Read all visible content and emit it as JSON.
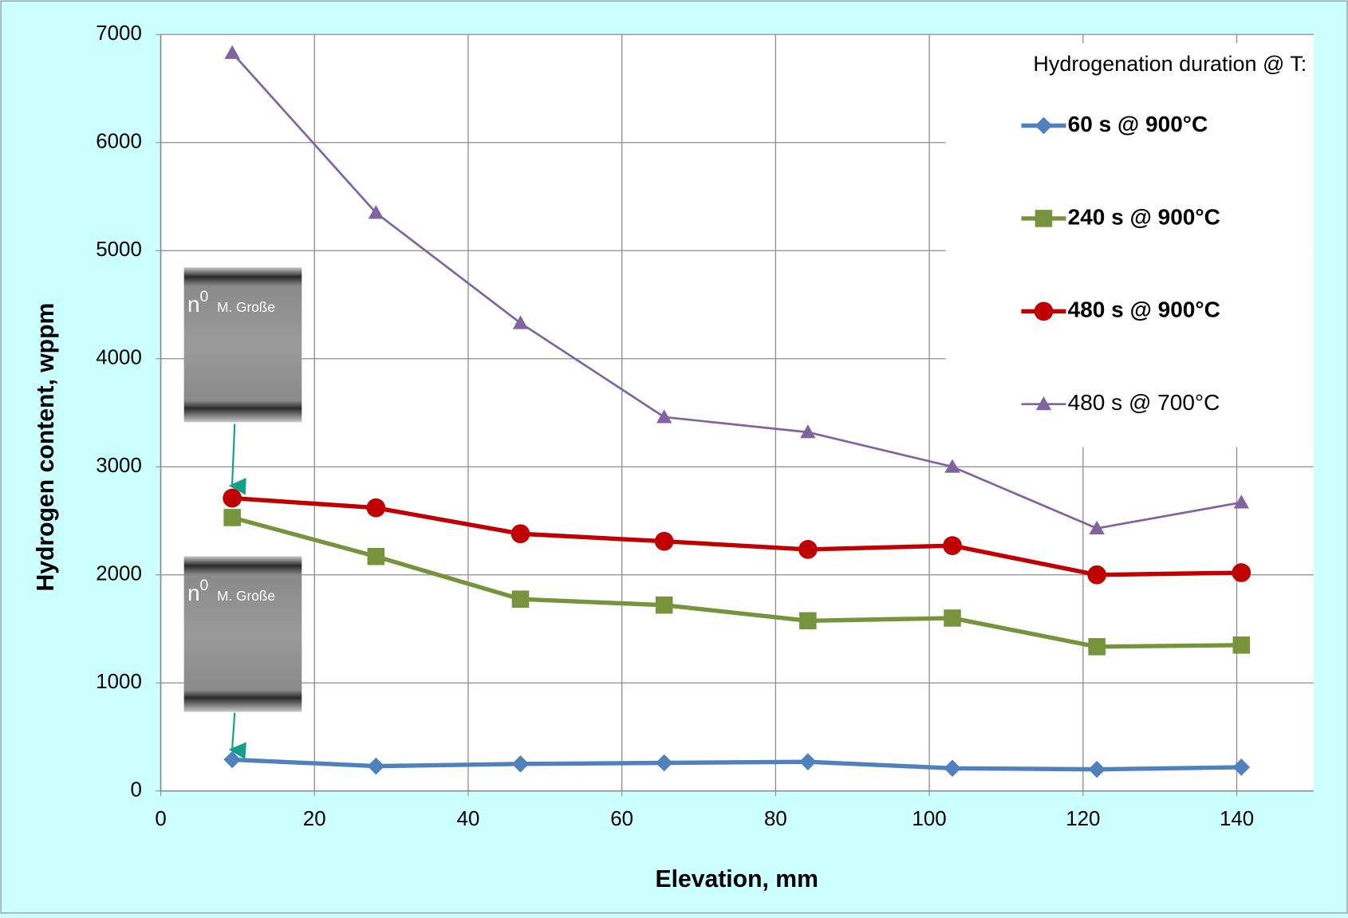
{
  "chart_data": {
    "type": "line",
    "x_label": "Elevation, mm",
    "y_label": "Hydrogen content, wppm",
    "x": [
      9.3,
      28,
      46.8,
      65.5,
      84.2,
      103,
      121.8,
      140.6
    ],
    "series": [
      {
        "name": "60 s @ 900°C",
        "color": "#4f81bd",
        "marker": "diamond",
        "bold": true,
        "values": [
          290,
          230,
          250,
          260,
          270,
          210,
          200,
          220
        ]
      },
      {
        "name": "240 s @ 900°C",
        "color": "#77933c",
        "marker": "square",
        "bold": true,
        "values": [
          2530,
          2170,
          1775,
          1720,
          1575,
          1600,
          1335,
          1350
        ]
      },
      {
        "name": "480 s @ 900°C",
        "color": "#c00000",
        "marker": "circle",
        "bold": true,
        "values": [
          2710,
          2620,
          2380,
          2310,
          2235,
          2270,
          2000,
          2020
        ]
      },
      {
        "name": "480 s @ 700°C",
        "color": "#8064a2",
        "marker": "triangle",
        "bold": false,
        "values": [
          6830,
          5350,
          4330,
          3460,
          3320,
          3000,
          2430,
          2670
        ]
      }
    ],
    "legend_title": "Hydrogenation duration @ T:",
    "legend_position": "upper right",
    "xlim": [
      0,
      150
    ],
    "xticks": [
      0,
      20,
      40,
      60,
      80,
      100,
      120,
      140
    ],
    "ylim": [
      0,
      7000
    ],
    "yticks": [
      0,
      1000,
      2000,
      3000,
      4000,
      5000,
      6000,
      7000
    ],
    "grid": true,
    "annotations": [
      {
        "main": "n",
        "sup": "0",
        "credit": "M. Große"
      },
      {
        "main": "n",
        "sup": "0",
        "credit": "M. Große"
      }
    ]
  }
}
